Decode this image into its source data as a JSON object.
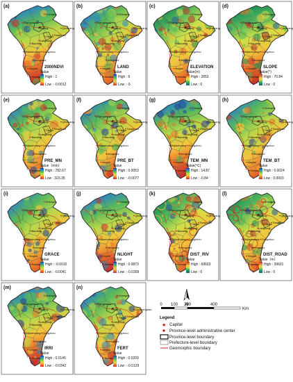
{
  "panels": [
    {
      "label": "(a)",
      "title": "2000NDVI",
      "unit": "Value",
      "high_label": "High : 1",
      "low_label": "Low : -0.0012",
      "ramp": "ndvi"
    },
    {
      "label": "(b)",
      "title": "LAND",
      "unit": "Value",
      "high_label": "High : 6",
      "low_label": "Low : -5",
      "ramp": "land"
    },
    {
      "label": "(c)",
      "title": "ELEVATION",
      "unit": "Value(m)",
      "high_label": "High : 2853",
      "low_label": "Low : 0",
      "ramp": "elev"
    },
    {
      "label": "(d)",
      "title": "SLOPE",
      "unit": "Value(°)",
      "high_label": "High : 70.84",
      "low_label": "Low : 0",
      "ramp": "slope"
    },
    {
      "label": "(e)",
      "title": "PRE_MN",
      "unit": "Value（mm）",
      "high_label": "High : 782.67",
      "low_label": "Low : 323.35",
      "ramp": "pre"
    },
    {
      "label": "(f)",
      "title": "PRE_BT",
      "unit": "Value",
      "high_label": "High : 0.0053",
      "low_label": "Low : -0.0077",
      "ramp": "prebt"
    },
    {
      "label": "(g)",
      "title": "TEM_MN",
      "unit": "Value(℃)",
      "high_label": "High : 14.87",
      "low_label": "Low : -0.84",
      "ramp": "tem"
    },
    {
      "label": "(h)",
      "title": "TEM_BT",
      "unit": "Value",
      "high_label": "High : 0.0024",
      "low_label": "Low : 0.0003",
      "ramp": "tembt"
    },
    {
      "label": "(i)",
      "title": "GRACE",
      "unit": "Value",
      "high_label": "High : -0.0015",
      "low_label": "Low : -0.0041",
      "ramp": "grace"
    },
    {
      "label": "(j)",
      "title": "NLIGHT",
      "unit": "Value",
      "high_label": "High : 0.0873",
      "low_label": "Low : -0.0309",
      "ramp": "nlight"
    },
    {
      "label": "(k)",
      "title": "DIST_RIV",
      "unit": "Value",
      "high_label": "High : 69503",
      "low_label": "Low : 0",
      "ramp": "riv"
    },
    {
      "label": "(l)",
      "title": "DIST_ROAD",
      "unit": "Value（m）",
      "high_label": "High : 39601",
      "low_label": "Low : 0",
      "ramp": "road"
    },
    {
      "label": "(m)",
      "title": "IRRI",
      "unit": "Value",
      "high_label": "High : 0.0145",
      "low_label": "Low : -0.0342",
      "ramp": "irri"
    },
    {
      "label": "(n)",
      "title": "FERT",
      "unit": "Value",
      "high_label": "High : 0.0209",
      "low_label": "Low : -0.0129",
      "ramp": "fert"
    }
  ],
  "cities": [
    "Chengde",
    "Zhangjiakou",
    "Beijing",
    "Tianjin",
    "Langfang",
    "Tangshan",
    "Qinhuangdao",
    "Baoding",
    "Cangzhou",
    "Shijiazhuang",
    "Hengshui",
    "Xingtai",
    "Handan"
  ],
  "legend": {
    "title": "Legend",
    "items": [
      {
        "symbol": "capital",
        "label": "Capital"
      },
      {
        "symbol": "center",
        "label": "Province-level  administrative center"
      },
      {
        "symbol": "province",
        "label": "Province-level  boundary"
      },
      {
        "symbol": "prefecture",
        "label": "Prefecture-level boundary"
      },
      {
        "symbol": "geomorphic",
        "label": "Geomorphic boundary"
      }
    ]
  },
  "north_arrow": "N",
  "scale_bar": {
    "ticks": [
      "0",
      "100",
      "200",
      "400"
    ],
    "unit": "Km"
  },
  "colors": {
    "boundary": "#222222",
    "geomorphic": "#cc0000",
    "capital": "#cc0000"
  },
  "ramps": {
    "ndvi": [
      "#1f3f9a",
      "#2e86c1",
      "#58b85a",
      "#b8d84a",
      "#f2c53d",
      "#e8732b",
      "#c9302c"
    ],
    "land": [
      "#1f3f9a",
      "#2e86c1",
      "#58b85a",
      "#b8d84a",
      "#f2c53d",
      "#e8732b",
      "#c9302c"
    ],
    "elev": [
      "#c0392b",
      "#e8732b",
      "#f2c53d",
      "#cde04a",
      "#58b85a",
      "#1e8f5a",
      "#245a9a"
    ],
    "slope": [
      "#c0392b",
      "#e8732b",
      "#f2c53d",
      "#cde04a",
      "#58b85a",
      "#1e8f5a",
      "#245a9a"
    ],
    "pre": [
      "#1f3f9a",
      "#2e86c1",
      "#58b85a",
      "#b8d84a",
      "#f2c53d",
      "#e8732b",
      "#c9302c"
    ],
    "prebt": [
      "#1f3f9a",
      "#2e86c1",
      "#58b85a",
      "#b8d84a",
      "#f2c53d",
      "#e8732b",
      "#c9302c"
    ],
    "tem": [
      "#1f3f9a",
      "#2e86c1",
      "#58b85a",
      "#b8d84a",
      "#f2c53d",
      "#e8732b",
      "#c9302c"
    ],
    "tembt": [
      "#1f3f9a",
      "#2e86c1",
      "#58b85a",
      "#b8d84a",
      "#f2c53d",
      "#e8732b",
      "#c9302c"
    ],
    "grace": [
      "#1f3f9a",
      "#2e86c1",
      "#58b85a",
      "#b8d84a",
      "#f2c53d",
      "#e8732b",
      "#c9302c"
    ],
    "nlight": [
      "#1f3f9a",
      "#2e86c1",
      "#58b85a",
      "#b8d84a",
      "#f2c53d",
      "#e8732b",
      "#c9302c"
    ],
    "riv": [
      "#c0392b",
      "#e8732b",
      "#f2c53d",
      "#cde04a",
      "#58b85a",
      "#1e8f5a",
      "#245a9a"
    ],
    "road": [
      "#c0392b",
      "#e8732b",
      "#f2c53d",
      "#cde04a",
      "#58b85a",
      "#1e8f5a",
      "#245a9a"
    ],
    "irri": [
      "#1f3f9a",
      "#2e86c1",
      "#58b85a",
      "#b8d84a",
      "#f2c53d",
      "#e8732b",
      "#c9302c"
    ],
    "fert": [
      "#1f3f9a",
      "#2e86c1",
      "#58b85a",
      "#b8d84a",
      "#f2c53d",
      "#e8732b",
      "#c9302c"
    ]
  }
}
